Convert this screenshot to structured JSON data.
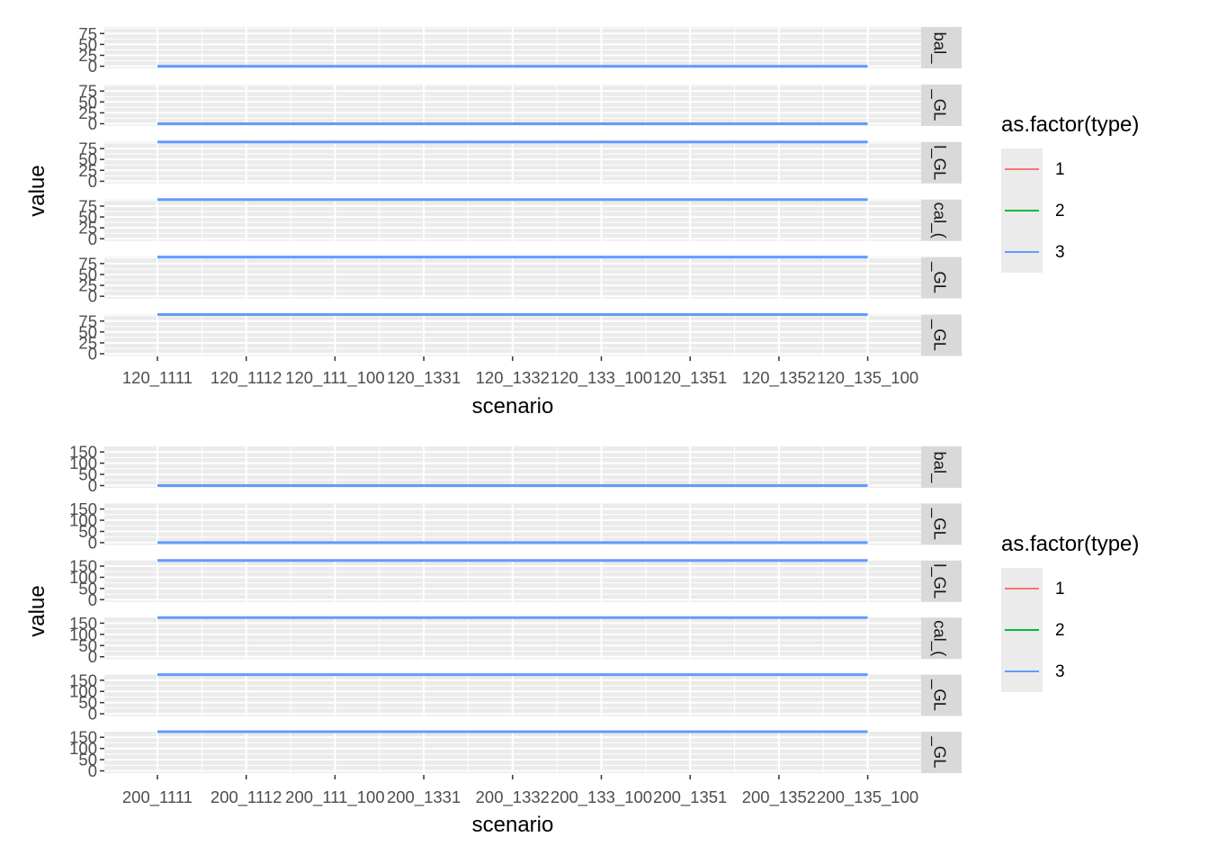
{
  "colors": {
    "panel_bg": "#ebebeb",
    "grid": "#ffffff",
    "strip_bg": "#d9d9d9",
    "type1": "#f8766d",
    "type2": "#00ba38",
    "type3": "#619cff"
  },
  "chart_data": [
    {
      "type": "line",
      "xlabel": "scenario",
      "ylabel": "value",
      "categories": [
        "120_111_1",
        "120_111_2",
        "120_111_100",
        "120_133_1",
        "120_133_2",
        "120_133_100",
        "120_135_1",
        "120_135_2",
        "120_135_100"
      ],
      "x_tick_labels": [
        "120_1111",
        "120_1112",
        "120_111_100",
        "120_1331",
        "120_1332",
        "120_133_100",
        "120_1351",
        "120_1352",
        "120_135_100"
      ],
      "yticks": [
        "0",
        "25",
        "50",
        "75"
      ],
      "ylim": [
        -5,
        90
      ],
      "legend": {
        "title": "as.factor(type)",
        "entries": [
          "1",
          "2",
          "3"
        ],
        "position": "right"
      },
      "facets": [
        {
          "strip": "bal_",
          "series": [
            {
              "type": "3",
              "values": [
                0,
                0,
                0,
                0,
                0,
                0,
                0,
                0,
                0
              ]
            }
          ]
        },
        {
          "strip": "_GL",
          "series": [
            {
              "type": "3",
              "values": [
                0,
                0,
                0,
                0,
                0,
                0,
                0,
                0,
                0
              ]
            }
          ]
        },
        {
          "strip": "l_GL",
          "series": [
            {
              "type": "3",
              "values": [
                90,
                90,
                90,
                90,
                90,
                90,
                90,
                90,
                90
              ]
            }
          ]
        },
        {
          "strip": "cal_(",
          "series": [
            {
              "type": "3",
              "values": [
                90,
                90,
                90,
                90,
                90,
                90,
                90,
                90,
                90
              ]
            }
          ]
        },
        {
          "strip": "_GL",
          "series": [
            {
              "type": "3",
              "values": [
                90,
                90,
                90,
                90,
                90,
                90,
                90,
                90,
                90
              ]
            }
          ]
        },
        {
          "strip": "_GL",
          "series": [
            {
              "type": "3",
              "values": [
                90,
                90,
                90,
                90,
                90,
                90,
                90,
                90,
                90
              ]
            }
          ]
        }
      ]
    },
    {
      "type": "line",
      "xlabel": "scenario",
      "ylabel": "value",
      "categories": [
        "200_111_1",
        "200_111_2",
        "200_111_100",
        "200_133_1",
        "200_133_2",
        "200_133_100",
        "200_135_1",
        "200_135_2",
        "200_135_100"
      ],
      "x_tick_labels": [
        "200_1111",
        "200_1112",
        "200_111_100",
        "200_1331",
        "200_1332",
        "200_133_100",
        "200_1351",
        "200_1352",
        "200_135_100"
      ],
      "yticks": [
        "0",
        "50",
        "100",
        "150"
      ],
      "ylim": [
        -10,
        175
      ],
      "legend": {
        "title": "as.factor(type)",
        "entries": [
          "1",
          "2",
          "3"
        ],
        "position": "right"
      },
      "facets": [
        {
          "strip": "bal_",
          "series": [
            {
              "type": "3",
              "values": [
                0,
                0,
                0,
                0,
                0,
                0,
                0,
                0,
                0
              ]
            }
          ]
        },
        {
          "strip": "_GL",
          "series": [
            {
              "type": "3",
              "values": [
                0,
                0,
                0,
                0,
                0,
                0,
                0,
                0,
                0
              ]
            }
          ]
        },
        {
          "strip": "l_GL",
          "series": [
            {
              "type": "3",
              "values": [
                175,
                175,
                175,
                175,
                175,
                175,
                175,
                175,
                175
              ]
            }
          ]
        },
        {
          "strip": "cal_(",
          "series": [
            {
              "type": "3",
              "values": [
                175,
                175,
                175,
                175,
                175,
                175,
                175,
                175,
                175
              ]
            }
          ]
        },
        {
          "strip": "_GL",
          "series": [
            {
              "type": "3",
              "values": [
                175,
                175,
                175,
                175,
                175,
                175,
                175,
                175,
                175
              ]
            }
          ]
        },
        {
          "strip": "_GL",
          "series": [
            {
              "type": "3",
              "values": [
                175,
                175,
                175,
                175,
                175,
                175,
                175,
                175,
                175
              ]
            }
          ]
        }
      ]
    }
  ]
}
